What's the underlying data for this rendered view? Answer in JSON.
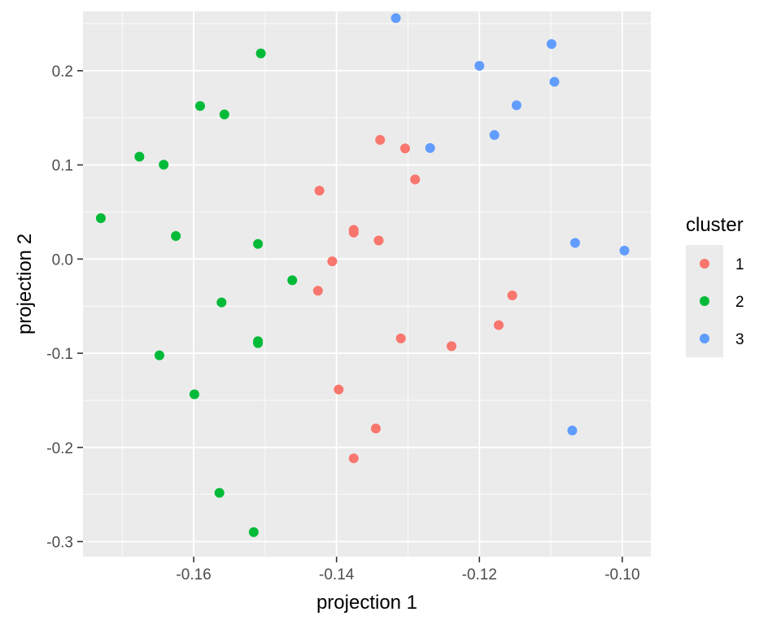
{
  "chart_data": {
    "type": "scatter",
    "xlabel": "projection 1",
    "ylabel": "projection 2",
    "xlim": [
      -0.1755,
      -0.096
    ],
    "ylim": [
      -0.316,
      0.263
    ],
    "x_ticks": [
      -0.16,
      -0.14,
      -0.12,
      -0.1
    ],
    "x_tick_labels": [
      "-0.16",
      "-0.14",
      "-0.12",
      "-0.10"
    ],
    "y_ticks": [
      -0.3,
      -0.2,
      -0.1,
      0.0,
      0.1,
      0.2
    ],
    "y_tick_labels": [
      "-0.3",
      "-0.2",
      "-0.1",
      "0.0",
      "0.1",
      "0.2"
    ],
    "grid": true,
    "legend": {
      "title": "cluster",
      "position": "right"
    },
    "series": [
      {
        "name": "1",
        "color": "#F8766D",
        "points": [
          [
            -0.1339,
            0.1266
          ],
          [
            -0.1304,
            0.1175
          ],
          [
            -0.129,
            0.0845
          ],
          [
            -0.1424,
            0.0727
          ],
          [
            -0.1376,
            0.031
          ],
          [
            -0.1376,
            0.0281
          ],
          [
            -0.1341,
            0.0197
          ],
          [
            -0.1406,
            -0.0024
          ],
          [
            -0.1426,
            -0.0336
          ],
          [
            -0.1154,
            -0.0386
          ],
          [
            -0.1173,
            -0.0701
          ],
          [
            -0.131,
            -0.0843
          ],
          [
            -0.1239,
            -0.0925
          ],
          [
            -0.1397,
            -0.1385
          ],
          [
            -0.1345,
            -0.1799
          ],
          [
            -0.1376,
            -0.2116
          ]
        ]
      },
      {
        "name": "2",
        "color": "#00BA38",
        "points": [
          [
            -0.1506,
            0.2184
          ],
          [
            -0.1591,
            0.1625
          ],
          [
            -0.1557,
            0.1536
          ],
          [
            -0.1676,
            0.1087
          ],
          [
            -0.1642,
            0.1002
          ],
          [
            -0.173,
            0.0434
          ],
          [
            -0.1625,
            0.0245
          ],
          [
            -0.151,
            0.0161
          ],
          [
            -0.1462,
            -0.0225
          ],
          [
            -0.1561,
            -0.046
          ],
          [
            -0.151,
            -0.0872
          ],
          [
            -0.151,
            -0.0893
          ],
          [
            -0.1648,
            -0.1022
          ],
          [
            -0.1599,
            -0.1436
          ],
          [
            -0.1564,
            -0.2483
          ],
          [
            -0.1516,
            -0.29
          ]
        ]
      },
      {
        "name": "3",
        "color": "#619CFF",
        "points": [
          [
            -0.1317,
            0.2559
          ],
          [
            -0.1099,
            0.2283
          ],
          [
            -0.12,
            0.2052
          ],
          [
            -0.1095,
            0.1882
          ],
          [
            -0.1148,
            0.1633
          ],
          [
            -0.1179,
            0.1317
          ],
          [
            -0.1269,
            0.1179
          ],
          [
            -0.1066,
            0.0171
          ],
          [
            -0.0997,
            0.009
          ],
          [
            -0.107,
            -0.1821
          ]
        ]
      }
    ]
  }
}
